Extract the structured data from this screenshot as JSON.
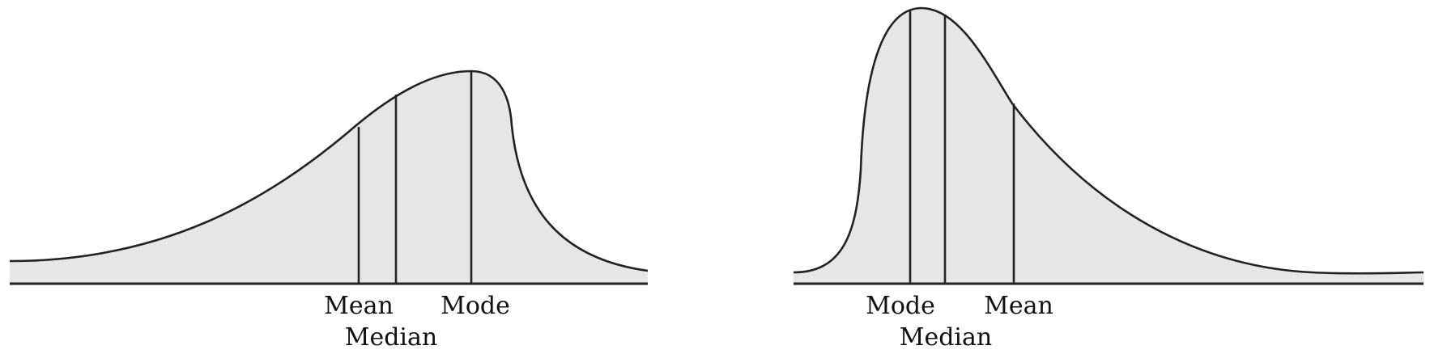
{
  "panels": [
    {
      "skew": "left",
      "labels": {
        "mean": "Mean",
        "median": "Median",
        "mode": "Mode"
      }
    },
    {
      "skew": "right",
      "labels": {
        "mode": "Mode",
        "median": "Median",
        "mean": "Mean"
      }
    }
  ],
  "colors": {
    "fill": "#e6e6e6",
    "stroke": "#222222"
  }
}
